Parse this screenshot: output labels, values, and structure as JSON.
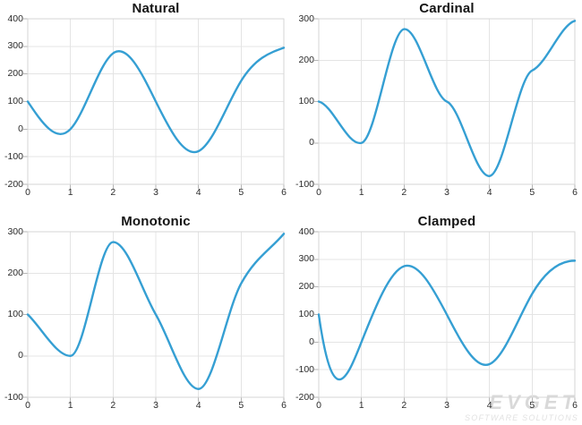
{
  "colors": {
    "line": "#359fd3",
    "grid": "#e4e4e4",
    "plot_border": "#d6d6d6",
    "tick": "#b4b4b4",
    "axis_label": "#2b2b2b",
    "title": "#141414",
    "watermark": "#d9d9d9"
  },
  "watermark": {
    "line1": "EVGET",
    "line2": "SOFTWARE SOLUTIONS"
  },
  "chart_data": [
    {
      "type": "line",
      "title": "Natural",
      "spline": "natural",
      "x": [
        0,
        1,
        2,
        3,
        4,
        5,
        6
      ],
      "values": [
        100,
        0,
        275,
        100,
        -80,
        175,
        295
      ],
      "xlabel": "",
      "ylabel": "",
      "xlim": [
        0,
        6
      ],
      "ylim": [
        -200,
        400
      ],
      "xticks": [
        0,
        1,
        2,
        3,
        4,
        5,
        6
      ],
      "yticks": [
        400,
        300,
        200,
        100,
        0,
        -100,
        -200
      ],
      "grid": true,
      "legend": "none"
    },
    {
      "type": "line",
      "title": "Cardinal",
      "spline": "cardinal",
      "tension": 0.75,
      "x": [
        0,
        1,
        2,
        3,
        4,
        5,
        6
      ],
      "values": [
        100,
        0,
        275,
        100,
        -80,
        175,
        295
      ],
      "xlabel": "",
      "ylabel": "",
      "xlim": [
        0,
        6
      ],
      "ylim": [
        -100,
        300
      ],
      "xticks": [
        0,
        1,
        2,
        3,
        4,
        5,
        6
      ],
      "yticks": [
        300,
        200,
        100,
        0,
        -100
      ],
      "grid": true,
      "legend": "none"
    },
    {
      "type": "line",
      "title": "Monotonic",
      "spline": "monotonic",
      "x": [
        0,
        1,
        2,
        3,
        4,
        5,
        6
      ],
      "values": [
        100,
        0,
        275,
        100,
        -80,
        175,
        295
      ],
      "xlabel": "",
      "ylabel": "",
      "xlim": [
        0,
        6
      ],
      "ylim": [
        -100,
        300
      ],
      "xticks": [
        0,
        1,
        2,
        3,
        4,
        5,
        6
      ],
      "yticks": [
        300,
        200,
        100,
        0,
        -100
      ],
      "grid": true,
      "legend": "none"
    },
    {
      "type": "line",
      "title": "Clamped",
      "spline": "clamped",
      "clamp_slopes": [
        -1090,
        0
      ],
      "x": [
        0,
        1,
        2,
        3,
        4,
        5,
        6
      ],
      "values": [
        100,
        0,
        275,
        100,
        -80,
        175,
        295
      ],
      "xlabel": "",
      "ylabel": "",
      "xlim": [
        0,
        6
      ],
      "ylim": [
        -200,
        400
      ],
      "xticks": [
        0,
        1,
        2,
        3,
        4,
        5,
        6
      ],
      "yticks": [
        400,
        300,
        200,
        100,
        0,
        -100,
        -200
      ],
      "grid": true,
      "legend": "none"
    }
  ]
}
